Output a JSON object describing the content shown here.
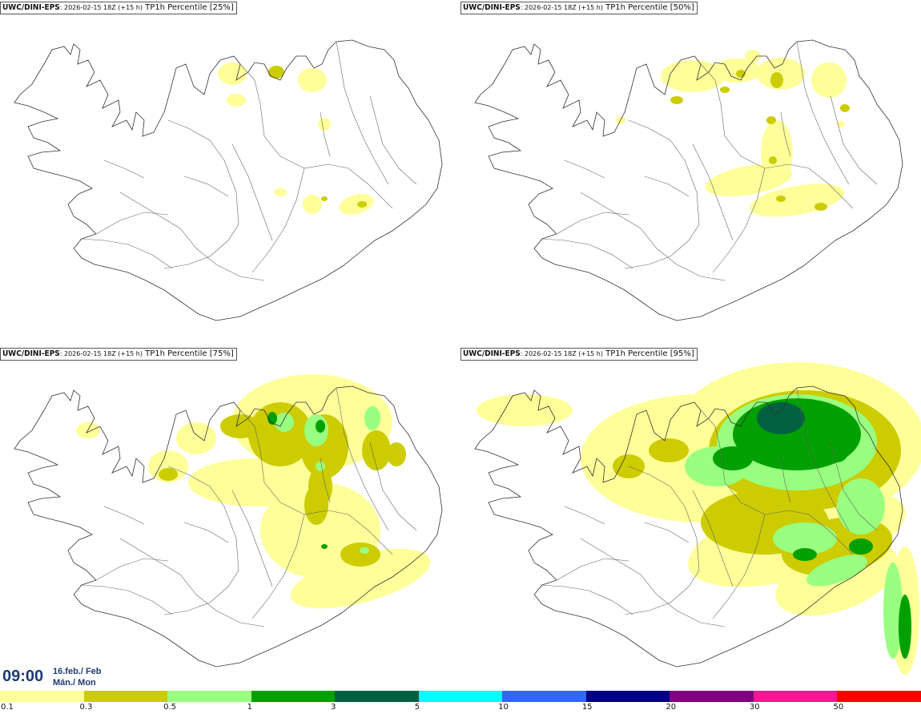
{
  "panels": [
    {
      "model": "UWC/DINI-EPS",
      "run": ": 2026-02-15 18Z (+15 h)",
      "field": " TP1h Percentile [25%]",
      "intensity": 0
    },
    {
      "model": "UWC/DINI-EPS",
      "run": ": 2026-02-15 18Z (+15 h)",
      "field": " TP1h Percentile [50%]",
      "intensity": 1
    },
    {
      "model": "UWC/DINI-EPS",
      "run": ": 2026-02-15 18Z (+15 h)",
      "field": " TP1h Percentile [75%]",
      "intensity": 2
    },
    {
      "model": "UWC/DINI-EPS",
      "run": ": 2026-02-15 18Z (+15 h)",
      "field": " TP1h Percentile [95%]",
      "intensity": 3
    }
  ],
  "valid_time": {
    "time": "09:00",
    "date_line1": "16.feb./ Feb",
    "date_line2": "Mán./ Mon"
  },
  "legend": {
    "colors": [
      "#ffff99",
      "#cccc00",
      "#99ff80",
      "#00a000",
      "#006040",
      "#00ffff",
      "#3366ff",
      "#000080",
      "#800080",
      "#ff1493",
      "#ff0000"
    ],
    "ticks": [
      "0.1",
      "0.3",
      "0.5",
      "1",
      "3",
      "5",
      "10",
      "15",
      "20",
      "30",
      "50"
    ]
  }
}
